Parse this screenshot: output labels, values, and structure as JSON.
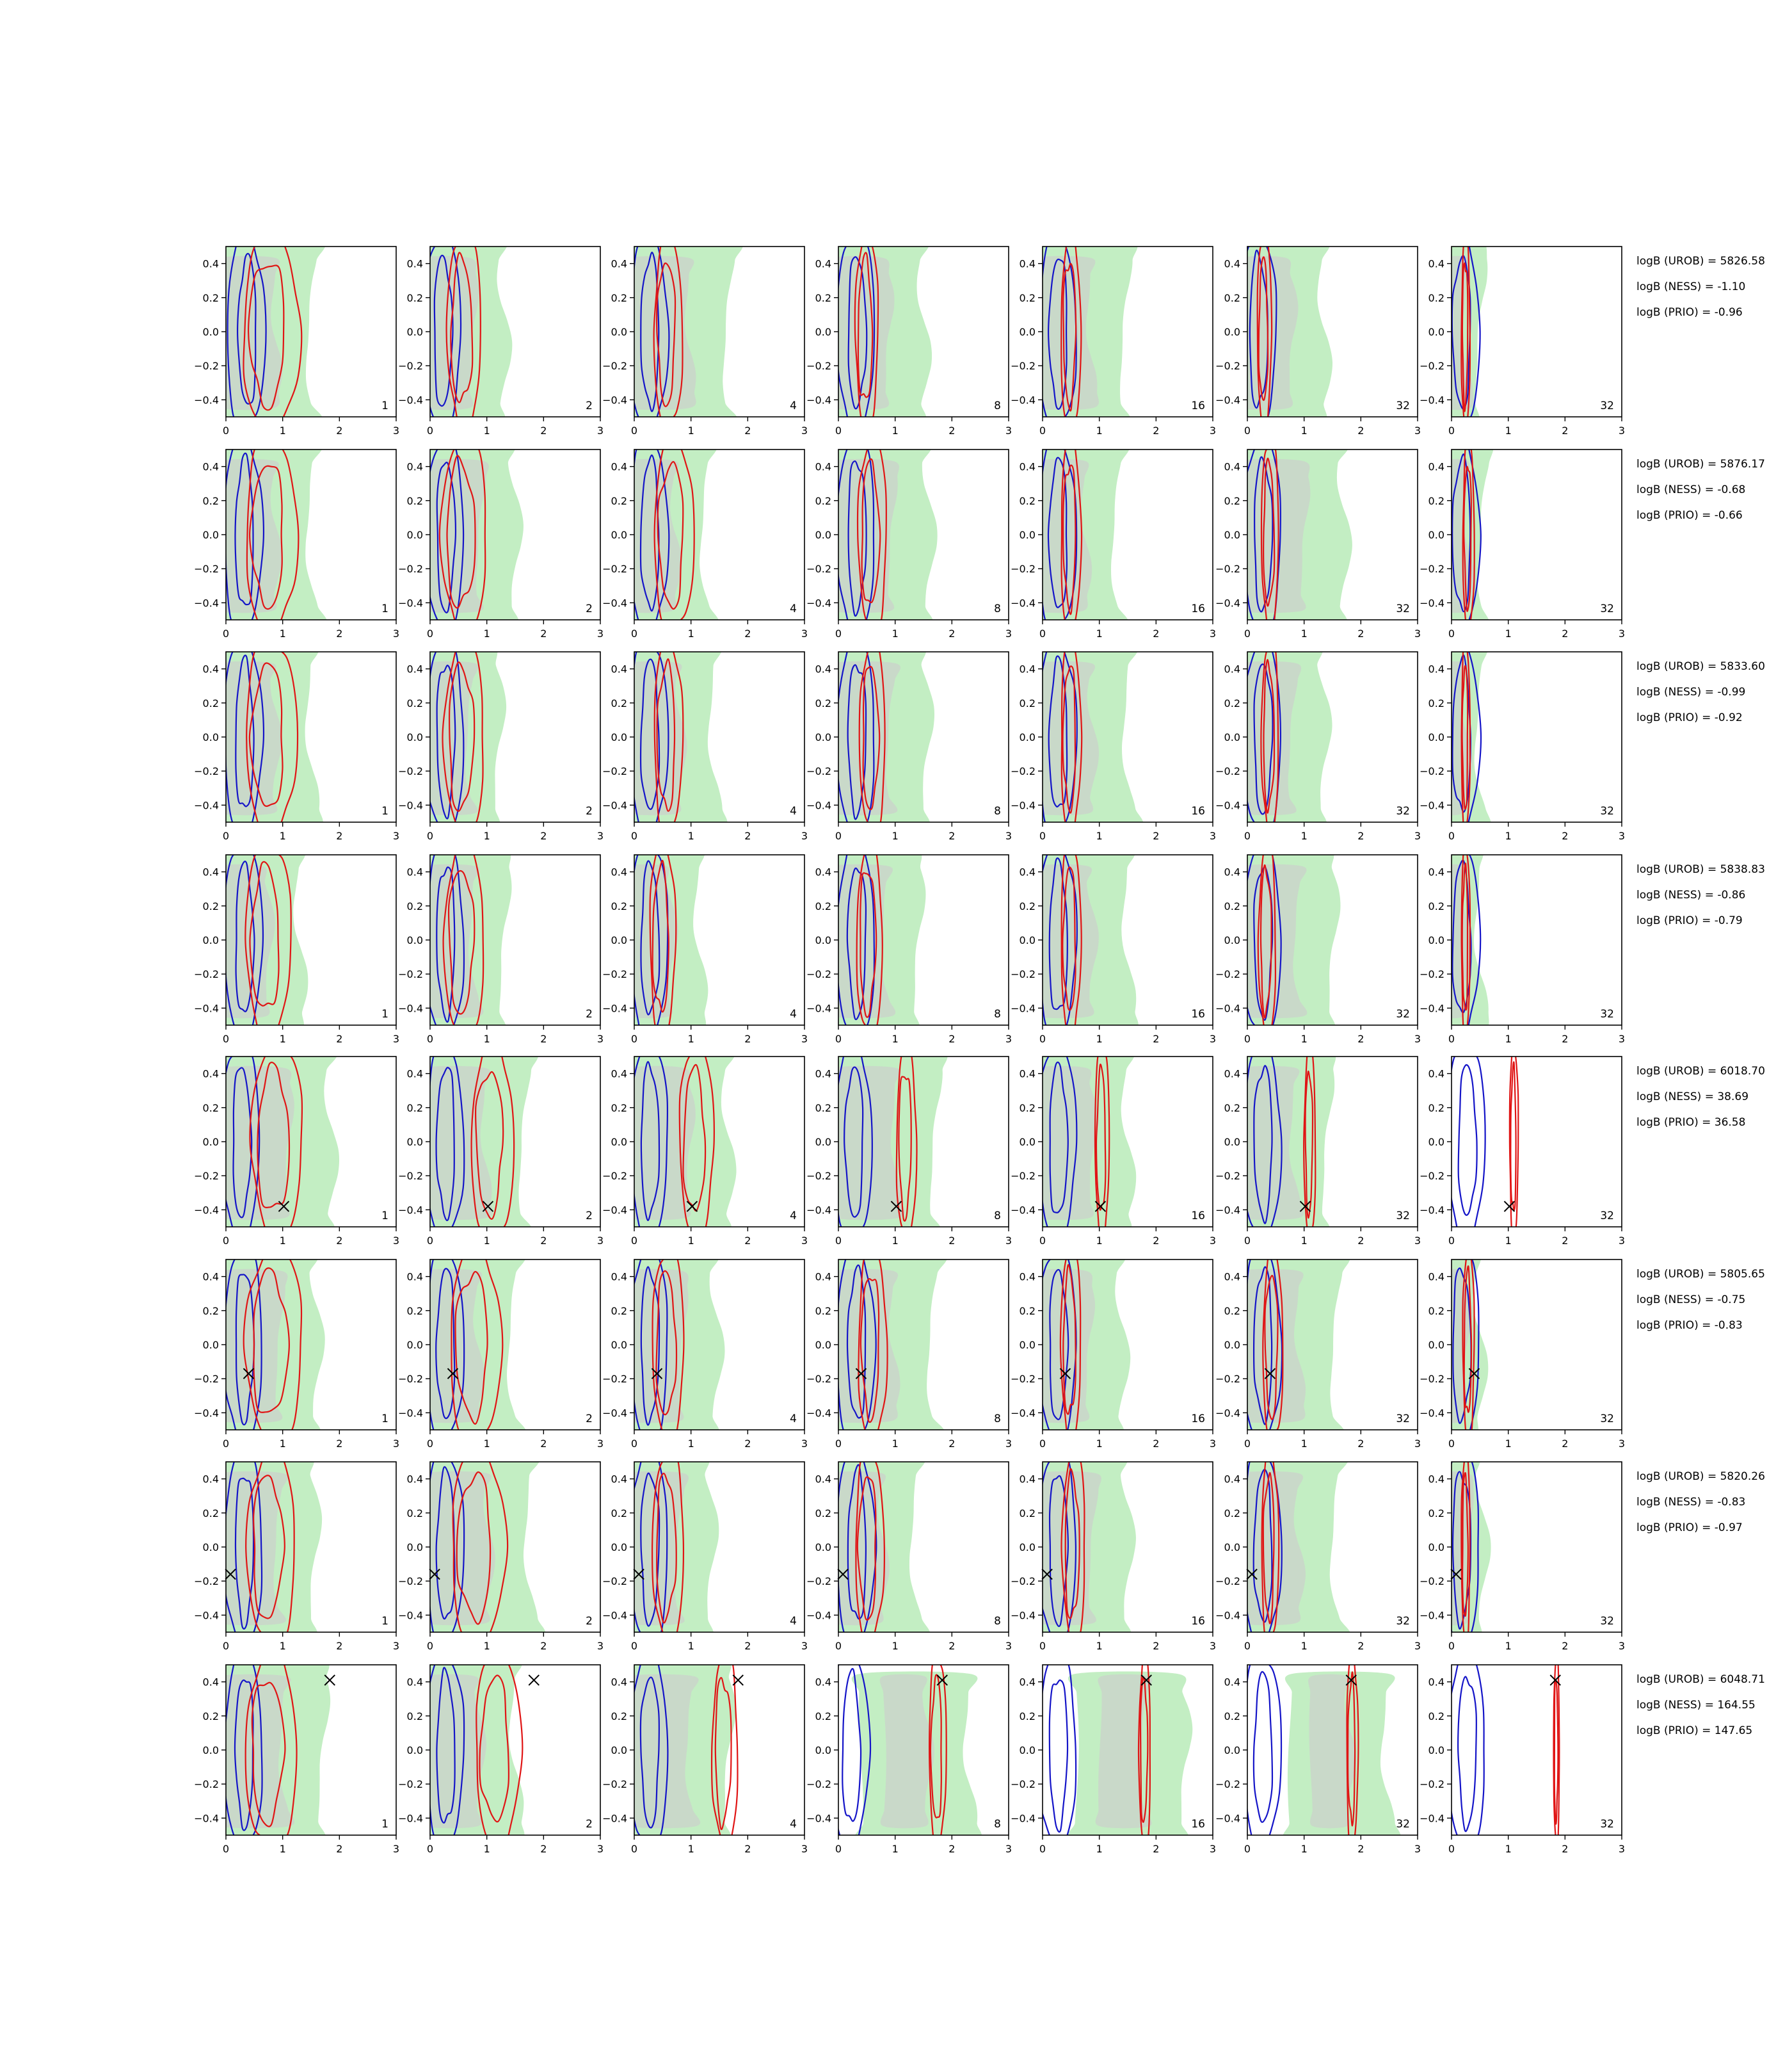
{
  "chart_data": {
    "type": "contour-grid",
    "xlim": [
      0,
      3
    ],
    "ylim": [
      -0.5,
      0.5
    ],
    "x_ticks": [
      0,
      1,
      2,
      3
    ],
    "y_ticks": [
      0.4,
      0.2,
      0.0,
      -0.2,
      -0.4
    ],
    "x_tick_labels": [
      "0",
      "1",
      "2",
      "3"
    ],
    "y_tick_labels": [
      "0.4",
      "0.2",
      "0.0",
      "−0.2",
      "−0.4"
    ],
    "panel_counts": [
      "1",
      "2",
      "4",
      "8",
      "16",
      "32",
      "32"
    ],
    "colors": {
      "fill_outer": "#c3eec3",
      "fill_inner": "#c9d9c9",
      "blue_contour": "#1515c8",
      "red_contour": "#e01515",
      "marker": "#000000",
      "axes": "#000000"
    },
    "rows": [
      {
        "stats": [
          "logB (UROB) = 5826.58",
          "logB (NESS) = -1.10",
          "logB (PRIO) = -0.96"
        ],
        "marker": null,
        "green_right": [
          1.5,
          1.3,
          1.65,
          1.5,
          1.45,
          1.35,
          0.5
        ],
        "blue_center": [
          0.4,
          0.25,
          0.3,
          0.35,
          0.3,
          0.22,
          0.2
        ],
        "red_center": [
          0.8,
          0.6,
          0.6,
          0.5,
          0.5,
          0.3,
          0.25
        ],
        "red_width": [
          1.0,
          0.6,
          0.5,
          0.4,
          0.35,
          0.25,
          0.15
        ]
      },
      {
        "stats": [
          "logB (UROB) = 5876.17",
          "logB (NESS) = -0.68",
          "logB (PRIO) = -0.66"
        ],
        "marker": null,
        "green_right": [
          1.5,
          1.5,
          1.25,
          1.6,
          1.3,
          1.7,
          0.55
        ],
        "blue_center": [
          0.35,
          0.3,
          0.3,
          0.35,
          0.3,
          0.3,
          0.2
        ],
        "red_center": [
          0.8,
          0.6,
          0.7,
          0.6,
          0.5,
          0.4,
          0.3
        ],
        "red_width": [
          0.9,
          0.8,
          0.7,
          0.5,
          0.35,
          0.3,
          0.2
        ]
      },
      {
        "stats": [
          "logB (UROB) = 5833.60",
          "logB (NESS) = -0.99",
          "logB (PRIO) = -0.92"
        ],
        "marker": null,
        "green_right": [
          1.5,
          1.2,
          1.4,
          1.55,
          1.5,
          1.35,
          0.5
        ],
        "blue_center": [
          0.35,
          0.3,
          0.3,
          0.35,
          0.3,
          0.3,
          0.2
        ],
        "red_center": [
          0.8,
          0.6,
          0.6,
          0.6,
          0.5,
          0.4,
          0.25
        ],
        "red_width": [
          0.9,
          0.7,
          0.5,
          0.45,
          0.35,
          0.3,
          0.15
        ]
      },
      {
        "stats": [
          "logB (UROB) = 5838.83",
          "logB (NESS) = -0.86",
          "logB (PRIO) = -0.79"
        ],
        "marker": null,
        "green_right": [
          1.3,
          1.3,
          1.15,
          1.4,
          1.5,
          1.5,
          0.5
        ],
        "blue_center": [
          0.35,
          0.3,
          0.3,
          0.35,
          0.3,
          0.3,
          0.2
        ],
        "red_center": [
          0.75,
          0.6,
          0.5,
          0.55,
          0.5,
          0.35,
          0.25
        ],
        "red_width": [
          0.8,
          0.7,
          0.45,
          0.45,
          0.35,
          0.3,
          0.15
        ]
      },
      {
        "stats": [
          "logB (UROB) = 6018.70",
          "logB (NESS) = 38.69",
          "logB (PRIO) = 36.58"
        ],
        "marker": {
          "x": 1.02,
          "y": -0.38
        },
        "green_right": [
          1.85,
          1.65,
          1.65,
          1.7,
          1.5,
          1.4,
          0.0
        ],
        "blue_center": [
          0.3,
          0.3,
          0.3,
          0.3,
          0.3,
          0.3,
          0.3
        ],
        "red_center": [
          0.9,
          1.1,
          1.1,
          1.2,
          1.05,
          1.1,
          1.1
        ],
        "red_width": [
          0.9,
          0.75,
          0.6,
          0.35,
          0.25,
          0.2,
          0.15
        ]
      },
      {
        "stats": [
          "logB (UROB) = 5805.65",
          "logB (NESS) = -0.75",
          "logB (PRIO) = -0.83"
        ],
        "marker": {
          "x": 0.4,
          "y": -0.17
        },
        "green_right": [
          1.6,
          1.45,
          1.45,
          1.65,
          1.4,
          1.55,
          0.5
        ],
        "blue_center": [
          0.35,
          0.3,
          0.3,
          0.35,
          0.3,
          0.3,
          0.2
        ],
        "red_center": [
          0.85,
          0.8,
          0.6,
          0.6,
          0.5,
          0.45,
          0.3
        ],
        "red_width": [
          1.0,
          0.9,
          0.55,
          0.5,
          0.35,
          0.35,
          0.2
        ]
      },
      {
        "stats": [
          "logB (UROB) = 5820.26",
          "logB (NESS) = -0.83",
          "logB (PRIO) = -0.97"
        ],
        "marker": {
          "x": 0.08,
          "y": -0.16
        },
        "green_right": [
          1.55,
          1.75,
          1.35,
          1.35,
          1.5,
          1.55,
          0.55
        ],
        "blue_center": [
          0.35,
          0.3,
          0.3,
          0.35,
          0.3,
          0.3,
          0.2
        ],
        "red_center": [
          0.8,
          0.85,
          0.6,
          0.55,
          0.55,
          0.4,
          0.25
        ],
        "red_width": [
          0.85,
          0.95,
          0.55,
          0.5,
          0.4,
          0.3,
          0.15
        ]
      },
      {
        "stats": [
          "logB (UROB) = 6048.71",
          "logB (NESS) = 164.55",
          "logB (PRIO) = 147.65"
        ],
        "marker": {
          "x": 1.83,
          "y": 0.41
        },
        "green_right": [
          1.7,
          1.5,
          1.65,
          2.3,
          2.5,
          2.45,
          0.0
        ],
        "green_left": [
          0.0,
          0.0,
          0.0,
          0.4,
          0.6,
          0.75,
          0.0
        ],
        "blue_center": [
          0.35,
          0.3,
          0.3,
          0.25,
          0.3,
          0.3,
          0.3
        ],
        "red_center": [
          0.8,
          1.2,
          1.6,
          1.75,
          1.8,
          1.85,
          1.85
        ],
        "red_width": [
          0.9,
          0.8,
          0.45,
          0.3,
          0.2,
          0.2,
          0.1
        ]
      }
    ]
  }
}
